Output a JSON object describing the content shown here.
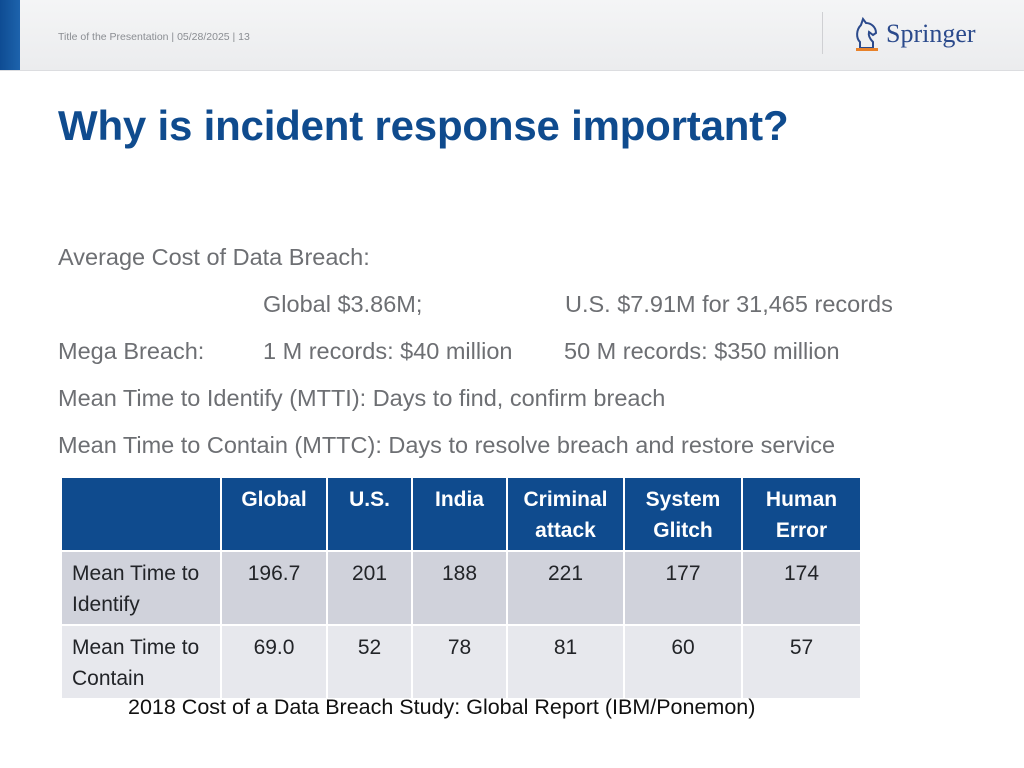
{
  "header": {
    "meta_text": "Title of the Presentation | 05/28/2025 | 13",
    "logo_text": "Springer",
    "accent_color": "#0e4c93"
  },
  "slide": {
    "title": "Why is incident response important?",
    "avg_cost_label": "Average Cost of Data Breach:",
    "global_cost": "Global $3.86M;",
    "us_cost": "U.S. $7.91M for 31,465 records",
    "mega_label": "Mega Breach:",
    "mega_1m": "1 M records: $40 million",
    "mega_50m": "50 M records: $350 million",
    "mtti_line": "Mean Time to Identify (MTTI): Days to find, confirm breach",
    "mttc_line": "Mean Time to Contain (MTTC): Days to resolve breach and restore service"
  },
  "table": {
    "headers": [
      "",
      "Global",
      "U.S.",
      "India",
      "Criminal attack",
      "System Glitch",
      "Human Error"
    ],
    "rows": [
      {
        "label": "Mean Time to Identify",
        "values": [
          "196.7",
          "201",
          "188",
          "221",
          "177",
          "174"
        ]
      },
      {
        "label": "Mean Time to Contain",
        "values": [
          "69.0",
          "52",
          "78",
          "81",
          "60",
          "57"
        ]
      }
    ],
    "header_color": "#0f4b8e"
  },
  "caption": "2018 Cost of a Data Breach Study: Global Report (IBM/Ponemon)"
}
